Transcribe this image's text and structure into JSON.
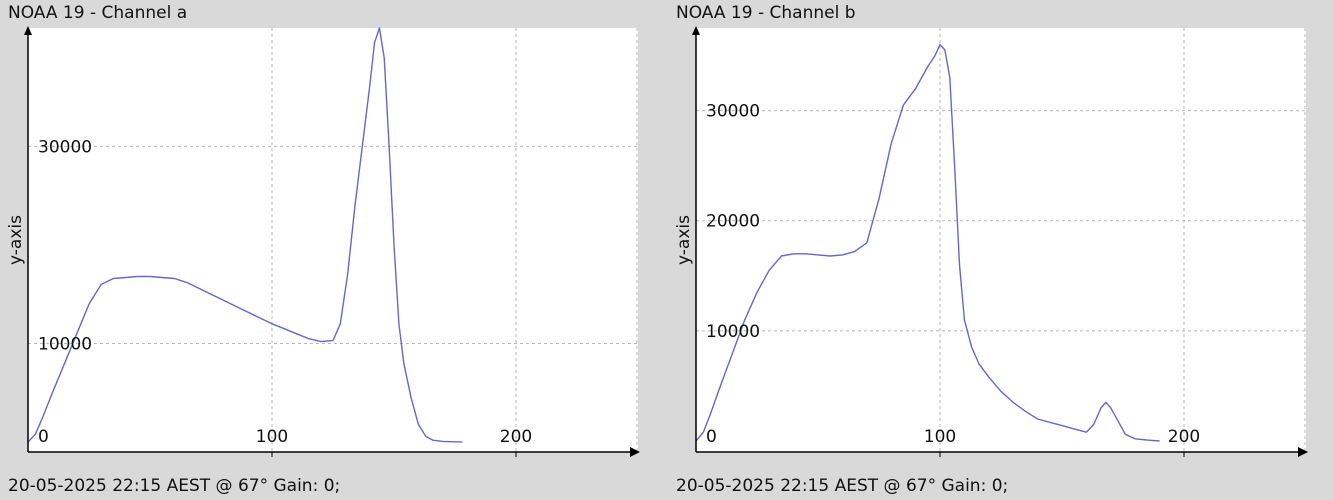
{
  "chart_data": [
    {
      "type": "line",
      "title": "NOAA 19 - Channel a",
      "ylabel": "y-axis",
      "xlabel": "",
      "footer": "20-05-2025 22:15 AEST @ 67° Gain: 0;",
      "xlim": [
        0,
        250
      ],
      "ylim": [
        -1000,
        42000
      ],
      "xticks": [
        0,
        100,
        200
      ],
      "yticks": [
        10000,
        30000
      ],
      "grid": true,
      "color": "#6666cc",
      "series": [
        {
          "x": [
            0,
            3,
            6,
            10,
            15,
            20,
            25,
            30,
            35,
            40,
            45,
            50,
            55,
            60,
            65,
            70,
            75,
            80,
            85,
            90,
            95,
            100,
            105,
            110,
            115,
            120,
            125,
            128,
            131,
            134,
            137,
            140,
            142,
            144,
            146,
            148,
            150,
            152,
            154,
            157,
            160,
            163,
            166,
            170,
            175,
            178
          ],
          "y": [
            0,
            800,
            2500,
            5000,
            8000,
            11000,
            14000,
            16000,
            16600,
            16700,
            16800,
            16800,
            16700,
            16600,
            16200,
            15600,
            15000,
            14400,
            13800,
            13200,
            12600,
            12000,
            11500,
            11000,
            10500,
            10200,
            10300,
            12000,
            17000,
            24000,
            30000,
            36000,
            40500,
            42000,
            39000,
            30000,
            20000,
            12000,
            8000,
            4500,
            1800,
            600,
            200,
            80,
            30,
            0
          ]
        }
      ]
    },
    {
      "type": "line",
      "title": "NOAA 19 - Channel b",
      "ylabel": "y-axis",
      "xlabel": "",
      "footer": "20-05-2025 22:15 AEST @ 67° Gain: 0;",
      "xlim": [
        0,
        250
      ],
      "ylim": [
        -1000,
        37500
      ],
      "xticks": [
        0,
        100,
        200
      ],
      "yticks": [
        10000,
        20000,
        30000
      ],
      "grid": true,
      "color": "#6666cc",
      "series": [
        {
          "x": [
            0,
            3,
            6,
            10,
            15,
            20,
            25,
            30,
            35,
            40,
            45,
            50,
            55,
            60,
            65,
            70,
            75,
            80,
            85,
            90,
            95,
            98,
            100,
            102,
            104,
            106,
            108,
            110,
            113,
            116,
            120,
            125,
            130,
            135,
            140,
            145,
            150,
            155,
            160,
            163,
            166,
            168,
            170,
            173,
            176,
            180,
            185,
            190
          ],
          "y": [
            0,
            800,
            2500,
            5000,
            8000,
            11000,
            13500,
            15500,
            16800,
            17000,
            17000,
            16900,
            16800,
            16900,
            17200,
            18000,
            22000,
            27000,
            30500,
            32000,
            34000,
            35000,
            36000,
            35500,
            33000,
            25000,
            16000,
            11000,
            8500,
            7000,
            5800,
            4500,
            3500,
            2700,
            2000,
            1700,
            1400,
            1100,
            800,
            1500,
            3000,
            3500,
            3000,
            1800,
            600,
            200,
            80,
            0
          ]
        }
      ]
    }
  ]
}
